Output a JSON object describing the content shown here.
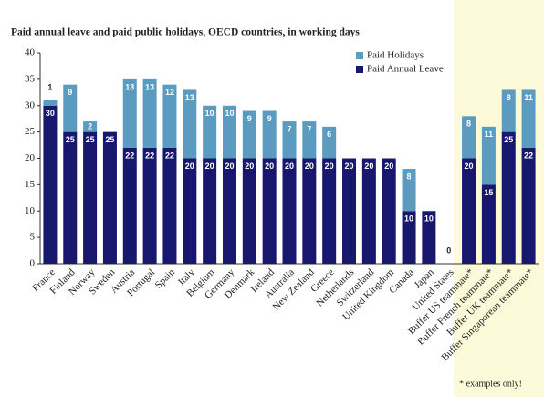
{
  "chart_data": {
    "type": "bar",
    "stacked": true,
    "title": "Paid annual leave and paid public holidays, OECD countries, in working days",
    "categories": [
      "France",
      "Finland",
      "Norway",
      "Sweden",
      "Austria",
      "Portugal",
      "Spain",
      "Italy",
      "Belgium",
      "Germany",
      "Denmark",
      "Ireland",
      "Australia",
      "New Zealand",
      "Greece",
      "Netherlands",
      "Switzerland",
      "United Kingdom",
      "Canada",
      "Japan",
      "United States",
      "Buffer US teammate*",
      "Buffer French teammate*",
      "Buffer UK teammate*",
      "Buffer Singaporean teammate*"
    ],
    "series": [
      {
        "name": "Paid Annual Leave",
        "color": "#17176e",
        "values": [
          30,
          25,
          25,
          25,
          22,
          22,
          22,
          20,
          20,
          20,
          20,
          20,
          20,
          20,
          20,
          20,
          20,
          20,
          10,
          10,
          0,
          20,
          15,
          25,
          22
        ]
      },
      {
        "name": "Paid Holidays",
        "color": "#5b9bc0",
        "values": [
          1,
          9,
          2,
          null,
          13,
          13,
          12,
          13,
          10,
          10,
          9,
          9,
          7,
          7,
          6,
          null,
          null,
          null,
          8,
          null,
          null,
          8,
          11,
          8,
          11
        ]
      }
    ],
    "ylim": [
      0,
      40
    ],
    "yticks": [
      0,
      5,
      10,
      15,
      20,
      25,
      30,
      35,
      40
    ],
    "grid": false,
    "legend": "top-right",
    "footnote": "* examples only!"
  }
}
